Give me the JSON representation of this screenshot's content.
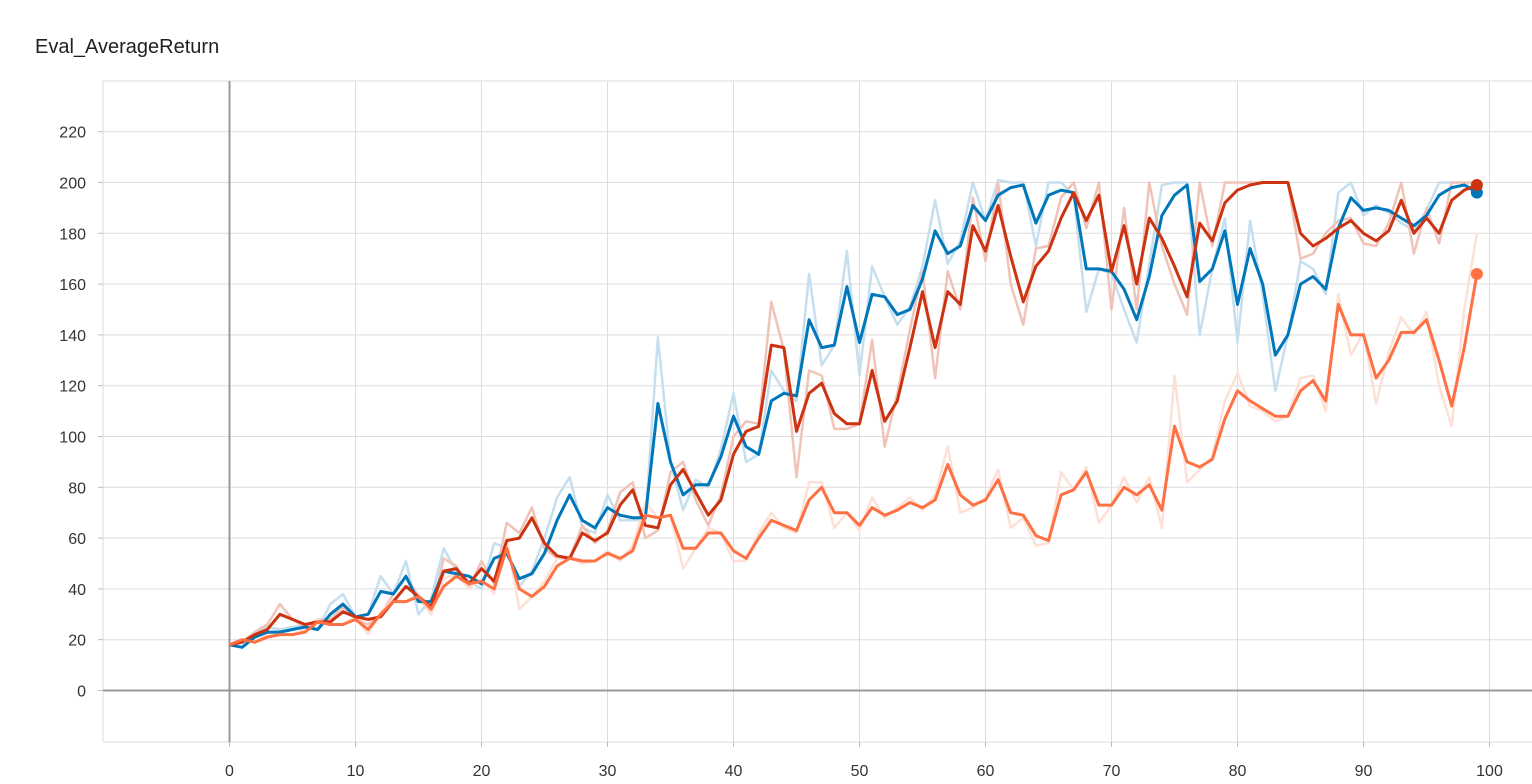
{
  "chart_data": {
    "type": "line",
    "title": "Eval_AverageReturn",
    "xlabel": "",
    "ylabel": "",
    "xlim": [
      -10,
      100
    ],
    "ylim": [
      -20,
      240
    ],
    "xticks": [
      0,
      10,
      20,
      30,
      40,
      50,
      60,
      70,
      80,
      90,
      100
    ],
    "yticks": [
      0,
      20,
      40,
      60,
      80,
      100,
      120,
      140,
      160,
      180,
      200,
      220
    ],
    "grid": true,
    "legend": "none",
    "series": [
      {
        "color": "#0077bb",
        "raw_color": "#c5dfee",
        "x": [
          0,
          1,
          2,
          3,
          4,
          5,
          6,
          7,
          8,
          9,
          10,
          11,
          12,
          13,
          14,
          15,
          16,
          17,
          18,
          19,
          20,
          21,
          22,
          23,
          24,
          25,
          26,
          27,
          28,
          29,
          30,
          31,
          32,
          33,
          34,
          35,
          36,
          37,
          38,
          39,
          40,
          41,
          42,
          43,
          44,
          45,
          46,
          47,
          48,
          49,
          50,
          51,
          52,
          53,
          54,
          55,
          56,
          57,
          58,
          59,
          60,
          61,
          62,
          63,
          64,
          65,
          66,
          67,
          68,
          69,
          70,
          71,
          72,
          73,
          74,
          75,
          76,
          77,
          78,
          79,
          80,
          81,
          82,
          83,
          84,
          85,
          86,
          87,
          88,
          89,
          90,
          91,
          92,
          93,
          94,
          95,
          96,
          97,
          98,
          99
        ],
        "smoothed": [
          18,
          17,
          21,
          23,
          23,
          24,
          25,
          24,
          30,
          34,
          29,
          30,
          39,
          38,
          45,
          35,
          35,
          47,
          46,
          45,
          42,
          52,
          54,
          44,
          46,
          54,
          67,
          77,
          67,
          64,
          72,
          69,
          68,
          68,
          113,
          90,
          77,
          81,
          81,
          92,
          108,
          96,
          93,
          114,
          117,
          116,
          146,
          135,
          136,
          159,
          137,
          156,
          155,
          148,
          150,
          162,
          181,
          172,
          175,
          191,
          185,
          195,
          198,
          199,
          184,
          195,
          197,
          196,
          166,
          166,
          165,
          158,
          146,
          163,
          187,
          195,
          199,
          161,
          166,
          181,
          152,
          174,
          160,
          132,
          140,
          160,
          163,
          158,
          182,
          194,
          189,
          190,
          189,
          186,
          183,
          187,
          195,
          198,
          199,
          196
        ],
        "raw": [
          18,
          17,
          22,
          25,
          24,
          25,
          26,
          24,
          34,
          38,
          29,
          30,
          45,
          38,
          51,
          30,
          36,
          56,
          47,
          43,
          40,
          58,
          56,
          41,
          47,
          60,
          76,
          84,
          64,
          62,
          77,
          67,
          67,
          67,
          139,
          90,
          71,
          83,
          80,
          95,
          117,
          90,
          93,
          126,
          118,
          114,
          164,
          128,
          136,
          173,
          124,
          167,
          155,
          144,
          151,
          167,
          193,
          168,
          177,
          200,
          185,
          201,
          200,
          200,
          175,
          200,
          200,
          195,
          149,
          166,
          164,
          150,
          137,
          168,
          199,
          200,
          200,
          140,
          166,
          186,
          137,
          185,
          156,
          118,
          140,
          169,
          166,
          156,
          196,
          200,
          187,
          191,
          188,
          184,
          181,
          189,
          200,
          200,
          200,
          196
        ]
      },
      {
        "color": "#cc3311",
        "raw_color": "#f0c3b8",
        "x": [
          0,
          1,
          2,
          3,
          4,
          5,
          6,
          7,
          8,
          9,
          10,
          11,
          12,
          13,
          14,
          15,
          16,
          17,
          18,
          19,
          20,
          21,
          22,
          23,
          24,
          25,
          26,
          27,
          28,
          29,
          30,
          31,
          32,
          33,
          34,
          35,
          36,
          37,
          38,
          39,
          40,
          41,
          42,
          43,
          44,
          45,
          46,
          47,
          48,
          49,
          50,
          51,
          52,
          53,
          54,
          55,
          56,
          57,
          58,
          59,
          60,
          61,
          62,
          63,
          64,
          65,
          66,
          67,
          68,
          69,
          70,
          71,
          72,
          73,
          74,
          75,
          76,
          77,
          78,
          79,
          80,
          81,
          82,
          83,
          84,
          85,
          86,
          87,
          88,
          89,
          90,
          91,
          92,
          93,
          94,
          95,
          96,
          97,
          98,
          99
        ],
        "smoothed": [
          18,
          19,
          22,
          24,
          30,
          28,
          26,
          27,
          27,
          31,
          29,
          28,
          29,
          35,
          41,
          37,
          33,
          47,
          48,
          42,
          48,
          43,
          59,
          60,
          68,
          58,
          53,
          52,
          62,
          59,
          62,
          73,
          79,
          65,
          64,
          81,
          87,
          78,
          69,
          75,
          93,
          102,
          104,
          136,
          135,
          102,
          117,
          121,
          109,
          105,
          105,
          126,
          106,
          114,
          135,
          157,
          135,
          157,
          152,
          183,
          173,
          191,
          171,
          153,
          167,
          173,
          186,
          196,
          185,
          195,
          165,
          183,
          160,
          186,
          178,
          167,
          155,
          184,
          177,
          192,
          197,
          199,
          200,
          200,
          200,
          180,
          175,
          178,
          182,
          185,
          180,
          177,
          181,
          193,
          180,
          186,
          180,
          193,
          197,
          199
        ],
        "raw": [
          18,
          19,
          23,
          26,
          34,
          28,
          25,
          28,
          28,
          33,
          28,
          26,
          30,
          38,
          45,
          37,
          30,
          52,
          49,
          40,
          51,
          42,
          66,
          62,
          72,
          56,
          52,
          52,
          65,
          58,
          63,
          78,
          82,
          60,
          63,
          86,
          90,
          75,
          65,
          77,
          100,
          106,
          105,
          153,
          134,
          84,
          126,
          124,
          103,
          103,
          105,
          138,
          96,
          117,
          142,
          165,
          123,
          165,
          150,
          194,
          169,
          200,
          160,
          144,
          174,
          175,
          194,
          200,
          182,
          200,
          150,
          190,
          150,
          200,
          175,
          160,
          148,
          200,
          175,
          200,
          200,
          200,
          200,
          200,
          200,
          170,
          172,
          180,
          185,
          186,
          176,
          175,
          184,
          200,
          172,
          190,
          176,
          200,
          200,
          200
        ]
      },
      {
        "color": "#ff7043",
        "raw_color": "#fde0d6",
        "x": [
          0,
          1,
          2,
          3,
          4,
          5,
          6,
          7,
          8,
          9,
          10,
          11,
          12,
          13,
          14,
          15,
          16,
          17,
          18,
          19,
          20,
          21,
          22,
          23,
          24,
          25,
          26,
          27,
          28,
          29,
          30,
          31,
          32,
          33,
          34,
          35,
          36,
          37,
          38,
          39,
          40,
          41,
          42,
          43,
          44,
          45,
          46,
          47,
          48,
          49,
          50,
          51,
          52,
          53,
          54,
          55,
          56,
          57,
          58,
          59,
          60,
          61,
          62,
          63,
          64,
          65,
          66,
          67,
          68,
          69,
          70,
          71,
          72,
          73,
          74,
          75,
          76,
          77,
          78,
          79,
          80,
          81,
          82,
          83,
          84,
          85,
          86,
          87,
          88,
          89,
          90,
          91,
          92,
          93,
          94,
          95,
          96,
          97,
          98,
          99
        ],
        "smoothed": [
          18,
          20,
          19,
          21,
          22,
          22,
          23,
          27,
          26,
          26,
          28,
          24,
          30,
          35,
          35,
          37,
          32,
          41,
          45,
          42,
          43,
          40,
          56,
          40,
          37,
          41,
          49,
          52,
          51,
          51,
          54,
          52,
          55,
          69,
          68,
          69,
          56,
          56,
          62,
          62,
          55,
          52,
          60,
          67,
          65,
          63,
          75,
          80,
          70,
          70,
          65,
          72,
          69,
          71,
          74,
          72,
          75,
          89,
          77,
          73,
          75,
          83,
          70,
          69,
          61,
          59,
          77,
          79,
          86,
          73,
          73,
          80,
          77,
          81,
          71,
          104,
          90,
          88,
          91,
          107,
          118,
          114,
          111,
          108,
          108,
          118,
          122,
          114,
          152,
          140,
          140,
          123,
          130,
          141,
          141,
          146,
          130,
          112,
          135,
          164
        ],
        "raw": [
          18,
          20,
          19,
          22,
          22,
          22,
          24,
          28,
          26,
          26,
          29,
          22,
          31,
          36,
          35,
          38,
          30,
          44,
          46,
          40,
          44,
          38,
          60,
          32,
          37,
          43,
          52,
          53,
          50,
          51,
          55,
          51,
          57,
          74,
          68,
          69,
          48,
          56,
          64,
          62,
          51,
          51,
          62,
          70,
          64,
          62,
          82,
          82,
          64,
          70,
          63,
          76,
          68,
          72,
          76,
          71,
          77,
          96,
          70,
          72,
          76,
          87,
          64,
          68,
          57,
          58,
          86,
          79,
          88,
          66,
          73,
          84,
          74,
          84,
          64,
          124,
          82,
          87,
          92,
          114,
          125,
          112,
          110,
          106,
          108,
          123,
          124,
          110,
          156,
          132,
          141,
          113,
          133,
          147,
          140,
          149,
          120,
          104,
          150,
          180
        ]
      }
    ]
  }
}
